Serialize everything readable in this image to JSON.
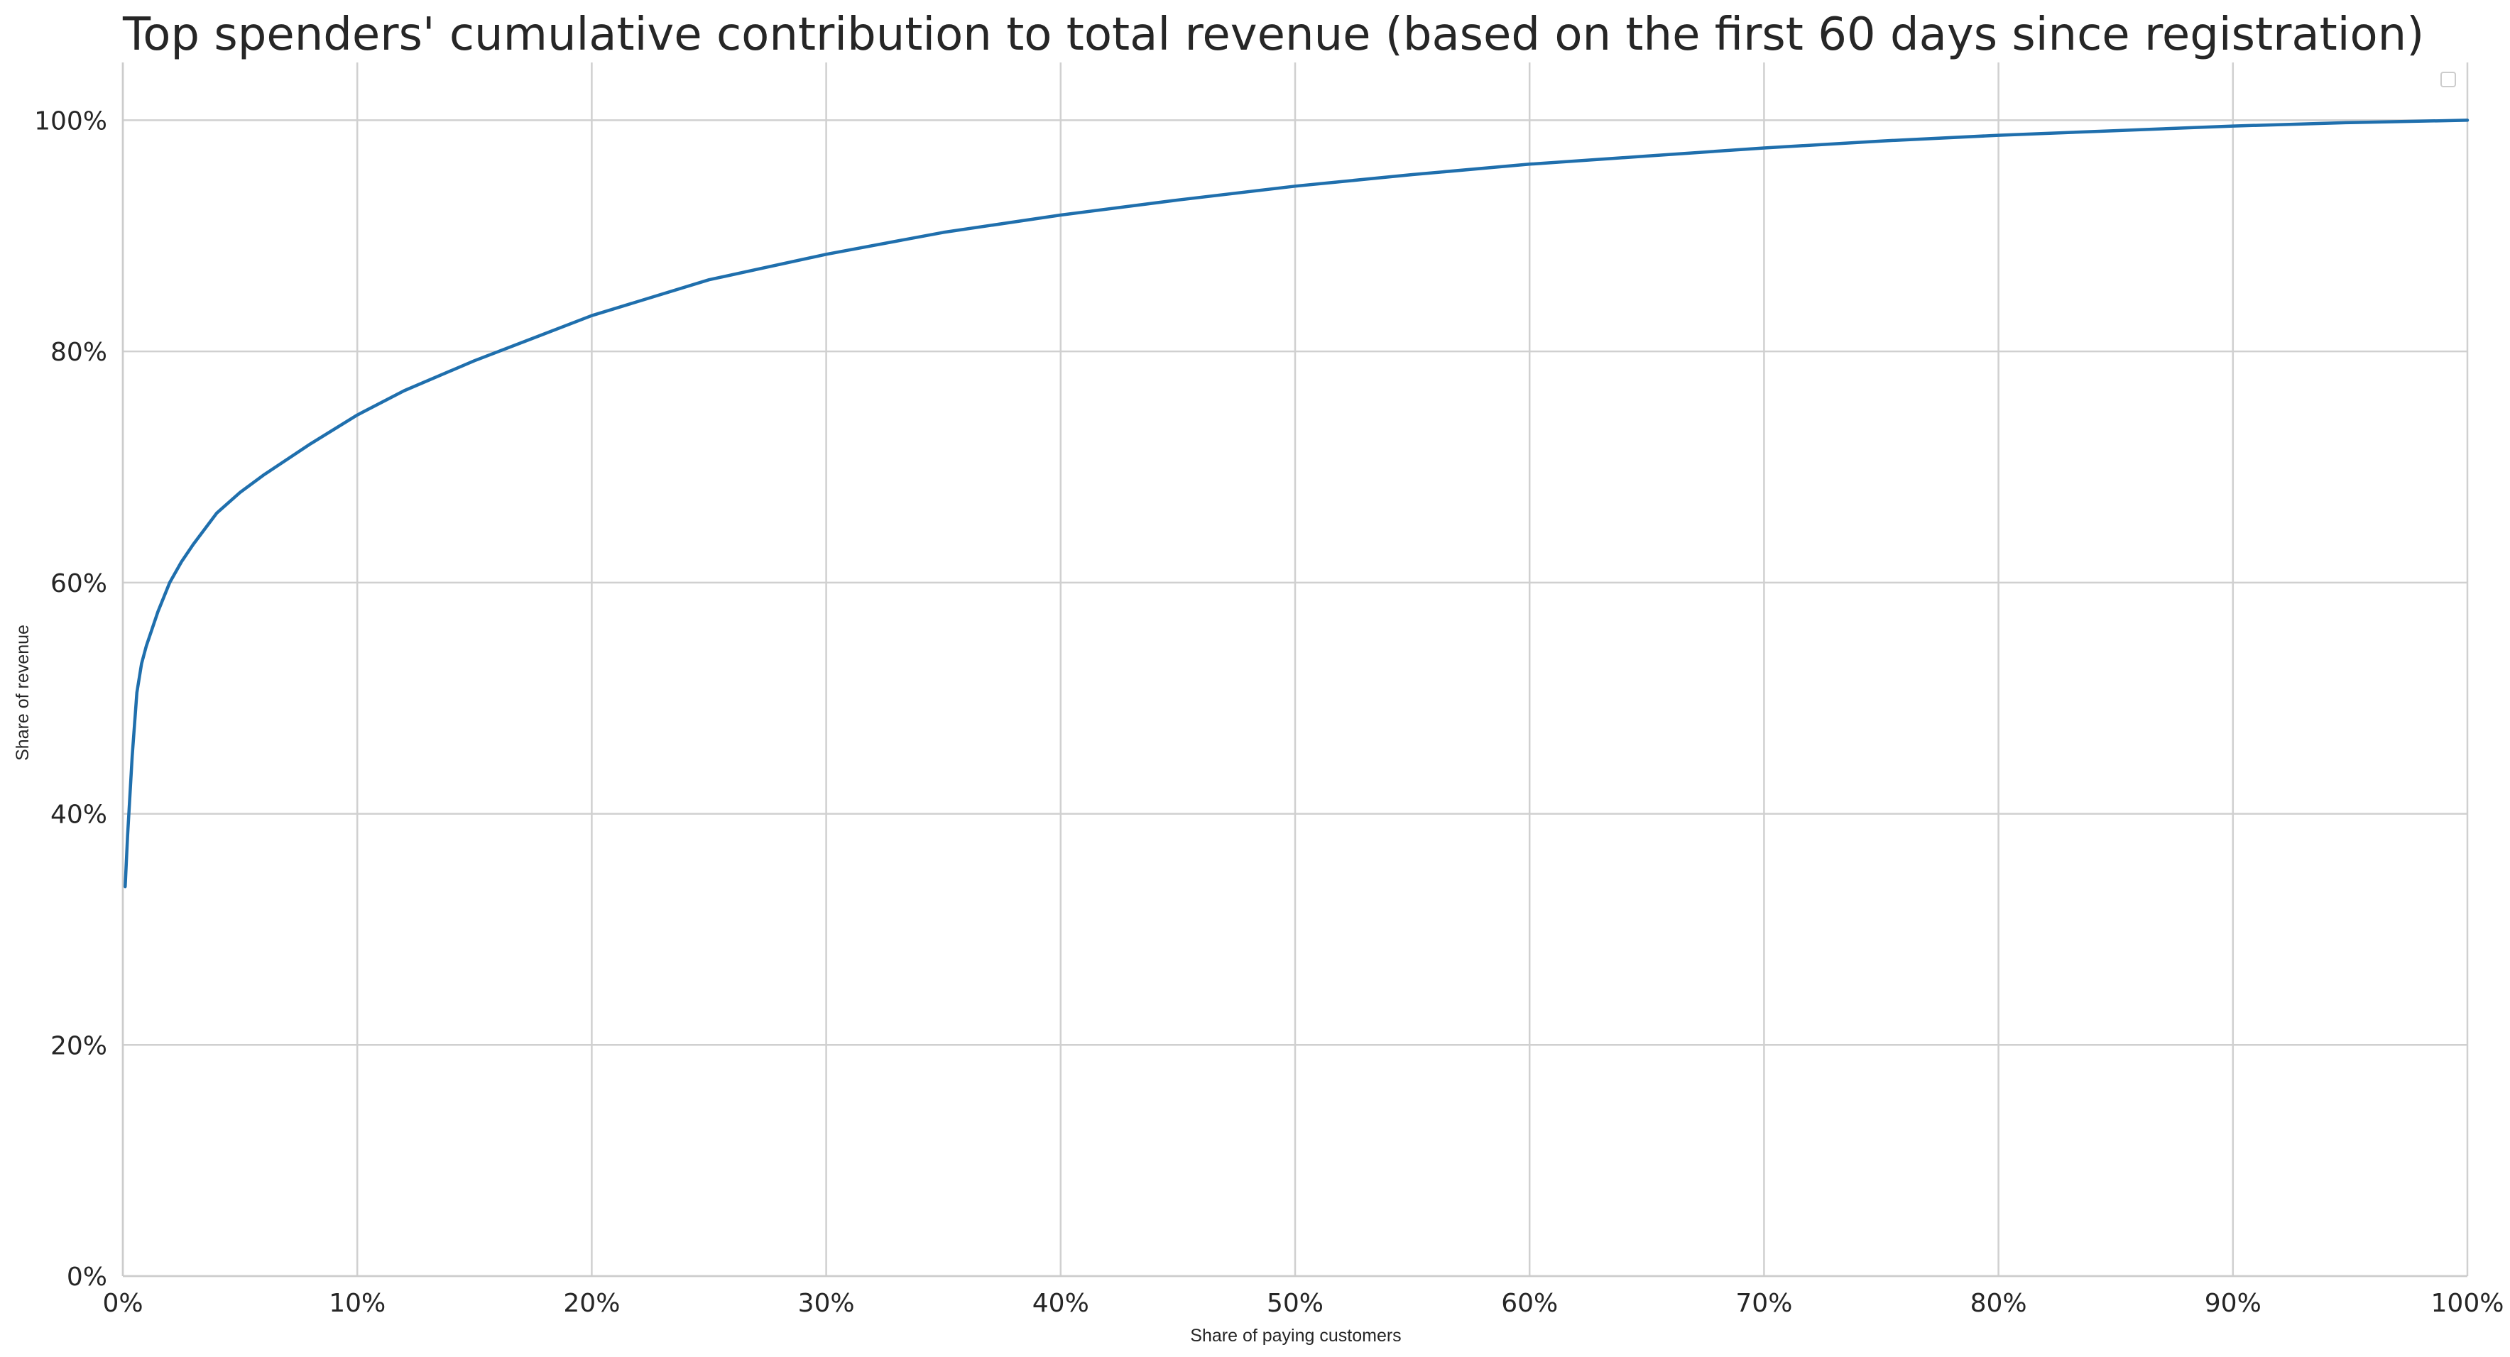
{
  "chart_data": {
    "type": "line",
    "title": "Top spenders' cumulative contribution to total revenue (based on the first 60 days since registration)",
    "xlabel": "Share of paying customers",
    "ylabel": "Share of revenue",
    "xlim": [
      0,
      1
    ],
    "ylim": [
      0,
      1.05
    ],
    "x_ticks": [
      0,
      0.1,
      0.2,
      0.3,
      0.4,
      0.5,
      0.6,
      0.7,
      0.8,
      0.9,
      1.0
    ],
    "x_tick_labels": [
      "0%",
      "10%",
      "20%",
      "30%",
      "40%",
      "50%",
      "60%",
      "70%",
      "80%",
      "90%",
      "100%"
    ],
    "y_ticks": [
      0,
      0.2,
      0.4,
      0.6,
      0.8,
      1.0
    ],
    "y_tick_labels": [
      "0%",
      "20%",
      "40%",
      "60%",
      "80%",
      "100%"
    ],
    "grid": true,
    "legend": "top-right",
    "colors": {
      "series": "#1f6fad",
      "grid": "#d0d0d0",
      "spine": "#cccccc",
      "text": "#262626"
    },
    "series": [
      {
        "x": [
          0.001,
          0.002,
          0.004,
          0.006,
          0.008,
          0.01,
          0.015,
          0.02,
          0.025,
          0.03,
          0.04,
          0.05,
          0.06,
          0.08,
          0.1,
          0.12,
          0.15,
          0.2,
          0.25,
          0.3,
          0.35,
          0.4,
          0.45,
          0.5,
          0.55,
          0.6,
          0.65,
          0.7,
          0.75,
          0.8,
          0.85,
          0.9,
          0.95,
          1.0
        ],
        "values": [
          0.337,
          0.38,
          0.45,
          0.505,
          0.53,
          0.545,
          0.575,
          0.6,
          0.618,
          0.633,
          0.66,
          0.678,
          0.693,
          0.72,
          0.745,
          0.766,
          0.792,
          0.831,
          0.862,
          0.884,
          0.903,
          0.918,
          0.931,
          0.943,
          0.953,
          0.962,
          0.969,
          0.976,
          0.982,
          0.987,
          0.991,
          0.995,
          0.998,
          1.0
        ]
      }
    ]
  }
}
